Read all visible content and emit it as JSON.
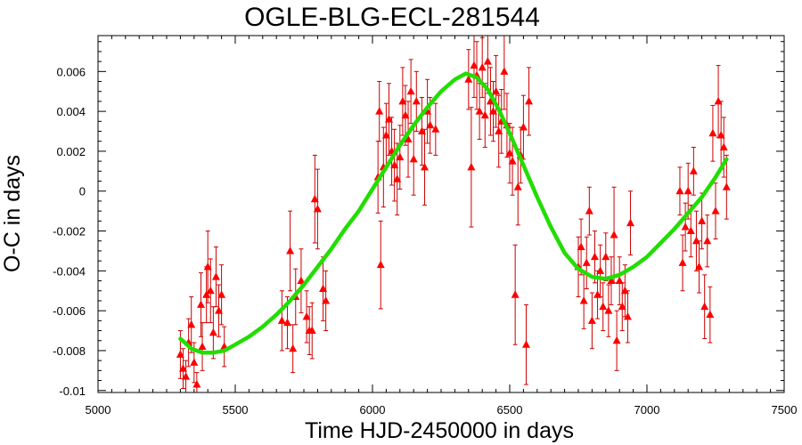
{
  "chart_data": {
    "type": "scatter",
    "title": "OGLE-BLG-ECL-281544",
    "xlabel": "Time HJD-2450000 in days",
    "ylabel": "O-C in days",
    "xlim": [
      5000,
      7500
    ],
    "ylim": [
      -0.0101,
      0.0078
    ],
    "xticks": [
      5000,
      5500,
      6000,
      6500,
      7000,
      7500
    ],
    "xtick_labels": [
      "5000",
      "5500",
      "6000",
      "6500",
      "7000",
      "7500"
    ],
    "yticks": [
      -0.01,
      -0.008,
      -0.006,
      -0.004,
      -0.002,
      0,
      0.002,
      0.004,
      0.006
    ],
    "ytick_labels": [
      "-0.01",
      "-0.008",
      "-0.006",
      "-0.004",
      "-0.002",
      "0",
      "0.002",
      "0.004",
      "0.006"
    ],
    "grid": false,
    "series": [
      {
        "kind": "points_with_error_bars",
        "color": "#ff0000",
        "marker": "triangle",
        "points": [
          {
            "x": 5300,
            "y": -0.0082,
            "err": 0.0012
          },
          {
            "x": 5310,
            "y": -0.0089,
            "err": 0.001
          },
          {
            "x": 5320,
            "y": -0.0093,
            "err": 0.0008
          },
          {
            "x": 5330,
            "y": -0.0076,
            "err": 0.0012
          },
          {
            "x": 5340,
            "y": -0.0067,
            "err": 0.0014
          },
          {
            "x": 5350,
            "y": -0.0086,
            "err": 0.001
          },
          {
            "x": 5360,
            "y": -0.0097,
            "err": 0.0006
          },
          {
            "x": 5375,
            "y": -0.0057,
            "err": 0.0016
          },
          {
            "x": 5380,
            "y": -0.0078,
            "err": 0.0012
          },
          {
            "x": 5395,
            "y": -0.0052,
            "err": 0.0014
          },
          {
            "x": 5400,
            "y": -0.0038,
            "err": 0.0018
          },
          {
            "x": 5410,
            "y": -0.005,
            "err": 0.0016
          },
          {
            "x": 5420,
            "y": -0.0071,
            "err": 0.0013
          },
          {
            "x": 5430,
            "y": -0.0043,
            "err": 0.0015
          },
          {
            "x": 5440,
            "y": -0.006,
            "err": 0.0013
          },
          {
            "x": 5450,
            "y": -0.0052,
            "err": 0.0015
          },
          {
            "x": 5460,
            "y": -0.0078,
            "err": 0.001
          },
          {
            "x": 5670,
            "y": -0.0065,
            "err": 0.0015
          },
          {
            "x": 5690,
            "y": -0.0066,
            "err": 0.0013
          },
          {
            "x": 5700,
            "y": -0.003,
            "err": 0.002
          },
          {
            "x": 5710,
            "y": -0.0079,
            "err": 0.0012
          },
          {
            "x": 5720,
            "y": -0.0053,
            "err": 0.0014
          },
          {
            "x": 5740,
            "y": -0.0045,
            "err": 0.0016
          },
          {
            "x": 5760,
            "y": -0.0063,
            "err": 0.0013
          },
          {
            "x": 5770,
            "y": -0.007,
            "err": 0.0012
          },
          {
            "x": 5780,
            "y": -0.007,
            "err": 0.0014
          },
          {
            "x": 5790,
            "y": -0.0004,
            "err": 0.0022
          },
          {
            "x": 5800,
            "y": -0.0009,
            "err": 0.002
          },
          {
            "x": 5820,
            "y": -0.0049,
            "err": 0.0016
          },
          {
            "x": 5830,
            "y": -0.0055,
            "err": 0.0015
          },
          {
            "x": 6020,
            "y": 0.0007,
            "err": 0.0018
          },
          {
            "x": 6025,
            "y": 0.004,
            "err": 0.0015
          },
          {
            "x": 6030,
            "y": -0.0037,
            "err": 0.0022
          },
          {
            "x": 6040,
            "y": 0.0012,
            "err": 0.002
          },
          {
            "x": 6050,
            "y": 0.0028,
            "err": 0.0016
          },
          {
            "x": 6060,
            "y": 0.0036,
            "err": 0.0018
          },
          {
            "x": 6070,
            "y": 0.002,
            "err": 0.0017
          },
          {
            "x": 6080,
            "y": 0.0013,
            "err": 0.0018
          },
          {
            "x": 6090,
            "y": 0.0006,
            "err": 0.0018
          },
          {
            "x": 6100,
            "y": 0.0017,
            "err": 0.0016
          },
          {
            "x": 6110,
            "y": 0.0045,
            "err": 0.0017
          },
          {
            "x": 6120,
            "y": 0.0038,
            "err": 0.0015
          },
          {
            "x": 6130,
            "y": 0.0026,
            "err": 0.0019
          },
          {
            "x": 6140,
            "y": 0.005,
            "err": 0.0016
          },
          {
            "x": 6150,
            "y": 0.0016,
            "err": 0.0018
          },
          {
            "x": 6160,
            "y": 0.0045,
            "err": 0.0015
          },
          {
            "x": 6180,
            "y": 0.003,
            "err": 0.0017
          },
          {
            "x": 6190,
            "y": 0.0012,
            "err": 0.0019
          },
          {
            "x": 6200,
            "y": 0.004,
            "err": 0.0016
          },
          {
            "x": 6210,
            "y": 0.0033,
            "err": 0.0014
          },
          {
            "x": 6230,
            "y": 0.0031,
            "err": 0.0013
          },
          {
            "x": 6350,
            "y": 0.0056,
            "err": 0.0015
          },
          {
            "x": 6360,
            "y": 0.0012,
            "err": 0.003
          },
          {
            "x": 6370,
            "y": 0.0063,
            "err": 0.0016
          },
          {
            "x": 6380,
            "y": 0.0058,
            "err": 0.0017
          },
          {
            "x": 6390,
            "y": 0.004,
            "err": 0.0014
          },
          {
            "x": 6400,
            "y": 0.0062,
            "err": 0.0015
          },
          {
            "x": 6410,
            "y": 0.0038,
            "err": 0.0016
          },
          {
            "x": 6420,
            "y": 0.0065,
            "err": 0.0016
          },
          {
            "x": 6430,
            "y": 0.0045,
            "err": 0.0017
          },
          {
            "x": 6440,
            "y": 0.004,
            "err": 0.0015
          },
          {
            "x": 6450,
            "y": 0.005,
            "err": 0.0018
          },
          {
            "x": 6460,
            "y": 0.003,
            "err": 0.0018
          },
          {
            "x": 6470,
            "y": 0.0035,
            "err": 0.0016
          },
          {
            "x": 6480,
            "y": 0.006,
            "err": 0.0019
          },
          {
            "x": 6490,
            "y": 0.0033,
            "err": 0.0016
          },
          {
            "x": 6500,
            "y": 0.0019,
            "err": 0.0015
          },
          {
            "x": 6510,
            "y": 0.0015,
            "err": 0.0017
          },
          {
            "x": 6520,
            "y": -0.0052,
            "err": 0.0025
          },
          {
            "x": 6530,
            "y": 0.0002,
            "err": 0.0019
          },
          {
            "x": 6540,
            "y": 0.0018,
            "err": 0.0014
          },
          {
            "x": 6550,
            "y": 0.0032,
            "err": 0.0016
          },
          {
            "x": 6560,
            "y": -0.0077,
            "err": 0.002
          },
          {
            "x": 6570,
            "y": 0.0045,
            "err": 0.0017
          },
          {
            "x": 6750,
            "y": -0.0038,
            "err": 0.0015
          },
          {
            "x": 6760,
            "y": -0.0028,
            "err": 0.0014
          },
          {
            "x": 6770,
            "y": -0.0055,
            "err": 0.0014
          },
          {
            "x": 6780,
            "y": -0.0036,
            "err": 0.0013
          },
          {
            "x": 6790,
            "y": -0.001,
            "err": 0.0012
          },
          {
            "x": 6800,
            "y": -0.0065,
            "err": 0.0014
          },
          {
            "x": 6810,
            "y": -0.0033,
            "err": 0.0013
          },
          {
            "x": 6820,
            "y": -0.0052,
            "err": 0.0012
          },
          {
            "x": 6830,
            "y": -0.004,
            "err": 0.0013
          },
          {
            "x": 6840,
            "y": -0.0058,
            "err": 0.0012
          },
          {
            "x": 6850,
            "y": -0.0033,
            "err": 0.0012
          },
          {
            "x": 6860,
            "y": -0.006,
            "err": 0.0013
          },
          {
            "x": 6870,
            "y": -0.0045,
            "err": 0.0012
          },
          {
            "x": 6880,
            "y": -0.0022,
            "err": 0.0024
          },
          {
            "x": 6890,
            "y": -0.0075,
            "err": 0.0015
          },
          {
            "x": 6900,
            "y": -0.0045,
            "err": 0.0012
          },
          {
            "x": 6910,
            "y": -0.0058,
            "err": 0.0012
          },
          {
            "x": 6920,
            "y": -0.005,
            "err": 0.0013
          },
          {
            "x": 6930,
            "y": -0.0063,
            "err": 0.0013
          },
          {
            "x": 6940,
            "y": -0.0016,
            "err": 0.0016
          },
          {
            "x": 7120,
            "y": 0.0,
            "err": 0.0012
          },
          {
            "x": 7130,
            "y": -0.0036,
            "err": 0.0014
          },
          {
            "x": 7140,
            "y": -0.0018,
            "err": 0.0012
          },
          {
            "x": 7150,
            "y": 0.0,
            "err": 0.0014
          },
          {
            "x": 7160,
            "y": -0.002,
            "err": 0.0013
          },
          {
            "x": 7170,
            "y": 0.001,
            "err": 0.0012
          },
          {
            "x": 7180,
            "y": -0.0025,
            "err": 0.0015
          },
          {
            "x": 7190,
            "y": -0.0038,
            "err": 0.0013
          },
          {
            "x": 7200,
            "y": -0.0015,
            "err": 0.0014
          },
          {
            "x": 7210,
            "y": -0.0058,
            "err": 0.0016
          },
          {
            "x": 7220,
            "y": -0.0025,
            "err": 0.0013
          },
          {
            "x": 7230,
            "y": -0.0062,
            "err": 0.0014
          },
          {
            "x": 7240,
            "y": 0.0029,
            "err": 0.0014
          },
          {
            "x": 7250,
            "y": -0.001,
            "err": 0.0014
          },
          {
            "x": 7260,
            "y": 0.0045,
            "err": 0.0018
          },
          {
            "x": 7270,
            "y": 0.0028,
            "err": 0.0017
          },
          {
            "x": 7280,
            "y": 0.0022,
            "err": 0.0015
          },
          {
            "x": 7290,
            "y": 0.0002,
            "err": 0.0016
          }
        ]
      },
      {
        "kind": "fit_curve",
        "color": "#22dd00",
        "x": [
          5300,
          5340,
          5380,
          5420,
          5460,
          5500,
          5550,
          5600,
          5650,
          5700,
          5750,
          5800,
          5850,
          5900,
          5950,
          6000,
          6050,
          6100,
          6150,
          6200,
          6250,
          6300,
          6340,
          6380,
          6420,
          6460,
          6500,
          6550,
          6600,
          6650,
          6700,
          6750,
          6800,
          6850,
          6900,
          6950,
          7000,
          7050,
          7100,
          7150,
          7200,
          7250,
          7290
        ],
        "y": [
          -0.0074,
          -0.0079,
          -0.0081,
          -0.0081,
          -0.008,
          -0.0077,
          -0.0073,
          -0.0068,
          -0.0062,
          -0.0055,
          -0.0047,
          -0.0038,
          -0.0029,
          -0.0019,
          -0.001,
          0.0001,
          0.0012,
          0.0023,
          0.0033,
          0.0042,
          0.005,
          0.0056,
          0.0059,
          0.0057,
          0.0051,
          0.0041,
          0.0029,
          0.0013,
          -0.0003,
          -0.0018,
          -0.0031,
          -0.0039,
          -0.0043,
          -0.0044,
          -0.0042,
          -0.0038,
          -0.0033,
          -0.0026,
          -0.0019,
          -0.0011,
          -0.0003,
          0.0007,
          0.0016
        ]
      }
    ]
  }
}
